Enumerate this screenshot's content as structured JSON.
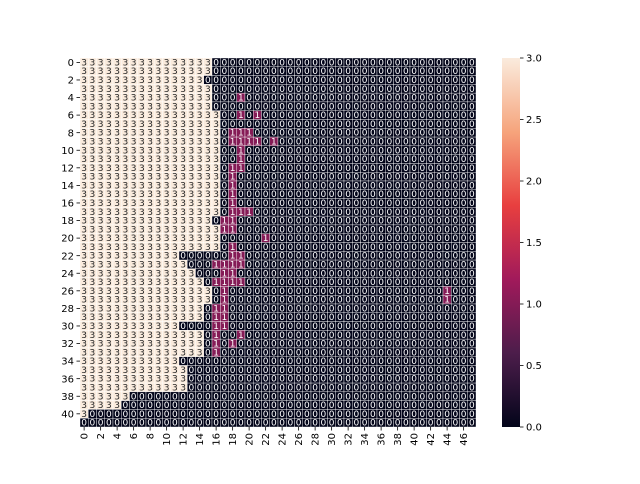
{
  "chart_data": {
    "type": "heatmap",
    "title": "",
    "xlabel": "",
    "ylabel": "",
    "n_cols": 48,
    "n_rows": 42,
    "x_tick_labels": [
      "0",
      "2",
      "4",
      "6",
      "8",
      "10",
      "12",
      "14",
      "16",
      "18",
      "20",
      "22",
      "24",
      "26",
      "28",
      "30",
      "32",
      "34",
      "36",
      "38",
      "40",
      "42",
      "44",
      "46"
    ],
    "y_tick_labels": [
      "0",
      "2",
      "4",
      "6",
      "8",
      "10",
      "12",
      "14",
      "16",
      "18",
      "20",
      "22",
      "24",
      "26",
      "28",
      "30",
      "32",
      "34",
      "36",
      "38",
      "40"
    ],
    "colorbar": {
      "vmin": 0,
      "vmax": 3,
      "tick_labels": [
        "0.0",
        "0.5",
        "1.0",
        "1.5",
        "2.0",
        "2.5",
        "3.0"
      ],
      "colormap": "rocket",
      "stops": [
        "#03051a",
        "#4c1d4b",
        "#a11a5b",
        "#e83f3f",
        "#f6a47c",
        "#faebdd"
      ]
    },
    "annotated": true,
    "cell_border_color": "#ffffff",
    "region_description_rows": [
      {
        "row": 0,
        "three_until": 16,
        "ones": []
      },
      {
        "row": 1,
        "three_until": 16,
        "ones": []
      },
      {
        "row": 2,
        "three_until": 15,
        "ones": []
      },
      {
        "row": 3,
        "three_until": 16,
        "ones": []
      },
      {
        "row": 4,
        "three_until": 16,
        "ones": [
          19
        ]
      },
      {
        "row": 5,
        "three_until": 16,
        "ones": []
      },
      {
        "row": 6,
        "three_until": 17,
        "ones": [
          19,
          21
        ]
      },
      {
        "row": 7,
        "three_until": 17,
        "ones": []
      },
      {
        "row": 8,
        "three_until": 17,
        "ones": [
          18,
          19,
          20
        ]
      },
      {
        "row": 9,
        "three_until": 17,
        "ones": [
          18,
          19,
          20,
          21,
          23
        ]
      },
      {
        "row": 10,
        "three_until": 17,
        "ones": [
          19
        ]
      },
      {
        "row": 11,
        "three_until": 17,
        "ones": [
          19
        ]
      },
      {
        "row": 12,
        "three_until": 17,
        "ones": [
          18,
          19
        ]
      },
      {
        "row": 13,
        "three_until": 17,
        "ones": [
          18
        ]
      },
      {
        "row": 14,
        "three_until": 17,
        "ones": [
          18
        ]
      },
      {
        "row": 15,
        "three_until": 17,
        "ones": [
          18
        ]
      },
      {
        "row": 16,
        "three_until": 17,
        "ones": [
          18
        ]
      },
      {
        "row": 17,
        "three_until": 17,
        "ones": [
          18,
          19,
          20
        ]
      },
      {
        "row": 18,
        "three_until": 16,
        "ones": [
          17,
          18
        ]
      },
      {
        "row": 19,
        "three_until": 17,
        "ones": [
          17,
          18
        ]
      },
      {
        "row": 20,
        "three_until": 17,
        "ones": [
          22
        ]
      },
      {
        "row": 21,
        "three_until": 17,
        "ones": [
          18
        ]
      },
      {
        "row": 22,
        "three_until": 12,
        "ones": [
          18,
          19
        ]
      },
      {
        "row": 23,
        "three_until": 13,
        "ones": [
          16,
          17,
          18,
          19
        ]
      },
      {
        "row": 24,
        "three_until": 14,
        "ones": [
          17,
          18
        ]
      },
      {
        "row": 25,
        "three_until": 15,
        "ones": [
          16,
          17,
          18,
          19
        ]
      },
      {
        "row": 26,
        "three_until": 16,
        "ones": [
          17,
          44
        ]
      },
      {
        "row": 27,
        "three_until": 16,
        "ones": [
          17,
          44
        ]
      },
      {
        "row": 28,
        "three_until": 15,
        "ones": [
          16,
          17
        ]
      },
      {
        "row": 29,
        "three_until": 15,
        "ones": [
          16,
          17
        ]
      },
      {
        "row": 30,
        "three_until": 12,
        "ones": [
          16,
          17
        ]
      },
      {
        "row": 31,
        "three_until": 15,
        "ones": [
          16,
          19
        ]
      },
      {
        "row": 32,
        "three_until": 15,
        "ones": [
          16,
          18
        ]
      },
      {
        "row": 33,
        "three_until": 15,
        "ones": [
          16
        ]
      },
      {
        "row": 34,
        "three_until": 12,
        "ones": []
      },
      {
        "row": 35,
        "three_until": 13,
        "ones": []
      },
      {
        "row": 36,
        "three_until": 13,
        "ones": []
      },
      {
        "row": 37,
        "three_until": 13,
        "ones": []
      },
      {
        "row": 38,
        "three_until": 6,
        "ones": []
      },
      {
        "row": 39,
        "three_until": 5,
        "ones": []
      },
      {
        "row": 40,
        "three_until": 1,
        "ones": []
      },
      {
        "row": 41,
        "three_until": 0,
        "ones": []
      }
    ],
    "tick_labels_shown_note_excluded": true
  }
}
